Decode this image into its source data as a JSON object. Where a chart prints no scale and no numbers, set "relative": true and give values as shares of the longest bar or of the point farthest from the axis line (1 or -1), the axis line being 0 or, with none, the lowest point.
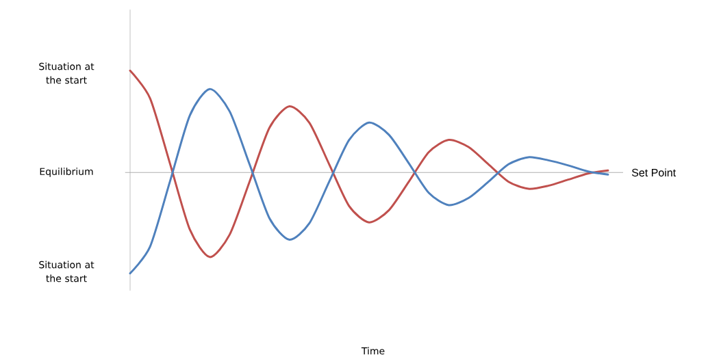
{
  "chart_data": {
    "type": "line",
    "relative": true,
    "categories": [
      null,
      null,
      null,
      null,
      null,
      null,
      null,
      null,
      null,
      null,
      null,
      null,
      null,
      null,
      null,
      null,
      null,
      null,
      null,
      null,
      null,
      null,
      null,
      null,
      null
    ],
    "series": [
      {
        "color": "#c0504d",
        "values": [
          1,
          0.73,
          0.09,
          -0.56,
          -0.83,
          -0.61,
          -0.09,
          0.44,
          0.65,
          0.49,
          0.08,
          -0.33,
          -0.49,
          -0.37,
          -0.09,
          0.2,
          0.32,
          0.25,
          0.08,
          -0.09,
          -0.16,
          -0.13,
          -0.07,
          -0.01,
          0.02
        ]
      },
      {
        "color": "#4f81bd",
        "values": [
          -0.99,
          -0.73,
          -0.09,
          0.56,
          0.82,
          0.6,
          0.08,
          -0.45,
          -0.66,
          -0.5,
          -0.09,
          0.32,
          0.49,
          0.37,
          0.09,
          -0.2,
          -0.32,
          -0.25,
          -0.09,
          0.08,
          0.15,
          0.12,
          0.07,
          0.01,
          -0.02
        ]
      }
    ],
    "annotations": [
      "Situation at the start",
      "Equilibrium",
      "Situation at the start",
      "Time"
    ],
    "ref_lines": [
      {
        "axis": "y",
        "value": 0,
        "label": "Set Point",
        "color": "#a6a6a6"
      }
    ],
    "marker": "none",
    "line_style": "solid"
  }
}
